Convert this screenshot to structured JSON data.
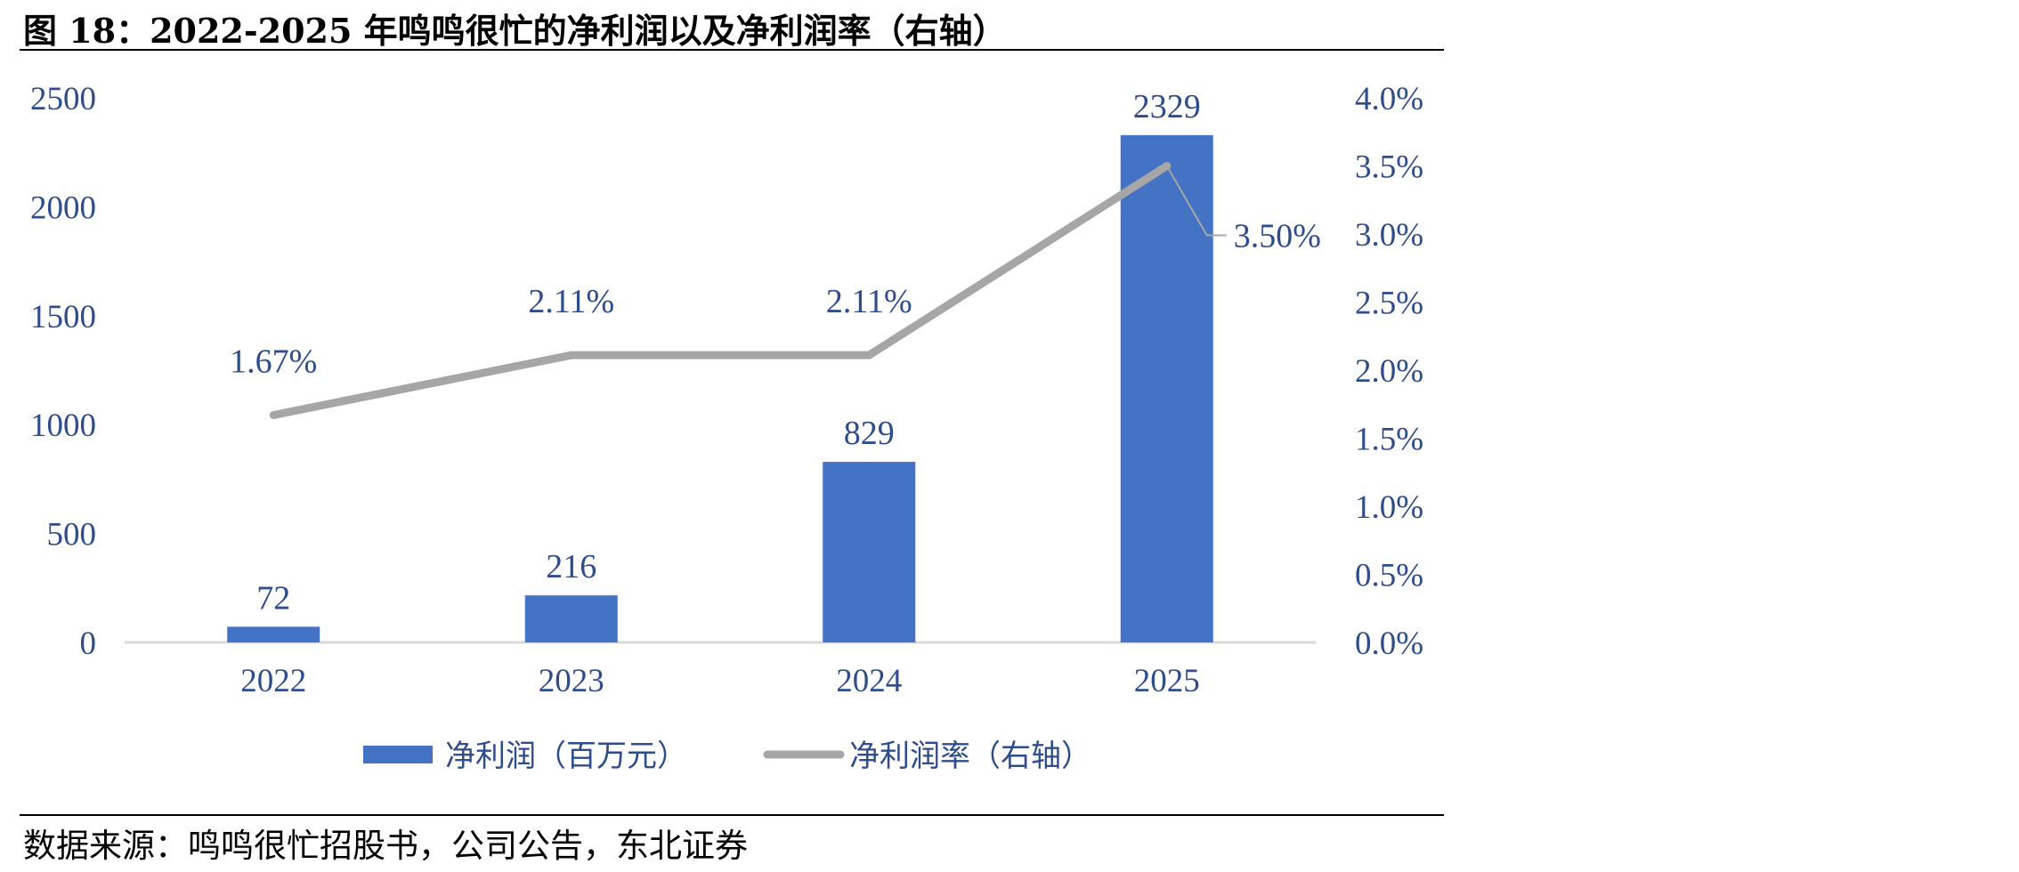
{
  "figure": {
    "title": "图 18：2022-2025 年鸣鸣很忙的净利润以及净利润率（右轴）",
    "source": "数据来源：鸣鸣很忙招股书，公司公告，东北证券"
  },
  "colors": {
    "bar": "#4472c4",
    "line": "#a6a6a6",
    "label": "#2f4d8a",
    "axis": "#d9d9d9"
  },
  "chart_data": {
    "type": "bar",
    "categories": [
      "2022",
      "2023",
      "2024",
      "2025"
    ],
    "series": [
      {
        "name": "净利润（百万元）",
        "type": "bar",
        "axis": "left",
        "values": [
          72,
          216,
          829,
          2329
        ],
        "labels": [
          "72",
          "216",
          "829",
          "2329"
        ]
      },
      {
        "name": "净利润率（右轴）",
        "type": "line",
        "axis": "right",
        "values": [
          1.67,
          2.11,
          2.11,
          3.5
        ],
        "labels": [
          "1.67%",
          "2.11%",
          "2.11%",
          "3.50%"
        ]
      }
    ],
    "y_left": {
      "range": [
        0,
        2500
      ],
      "ticks": [
        "0",
        "500",
        "1000",
        "1500",
        "2000",
        "2500"
      ]
    },
    "y_right": {
      "range": [
        0,
        4.0
      ],
      "ticks": [
        "0.0%",
        "0.5%",
        "1.0%",
        "1.5%",
        "2.0%",
        "2.5%",
        "3.0%",
        "3.5%",
        "4.0%"
      ]
    },
    "grid": false,
    "legend_position": "bottom"
  }
}
